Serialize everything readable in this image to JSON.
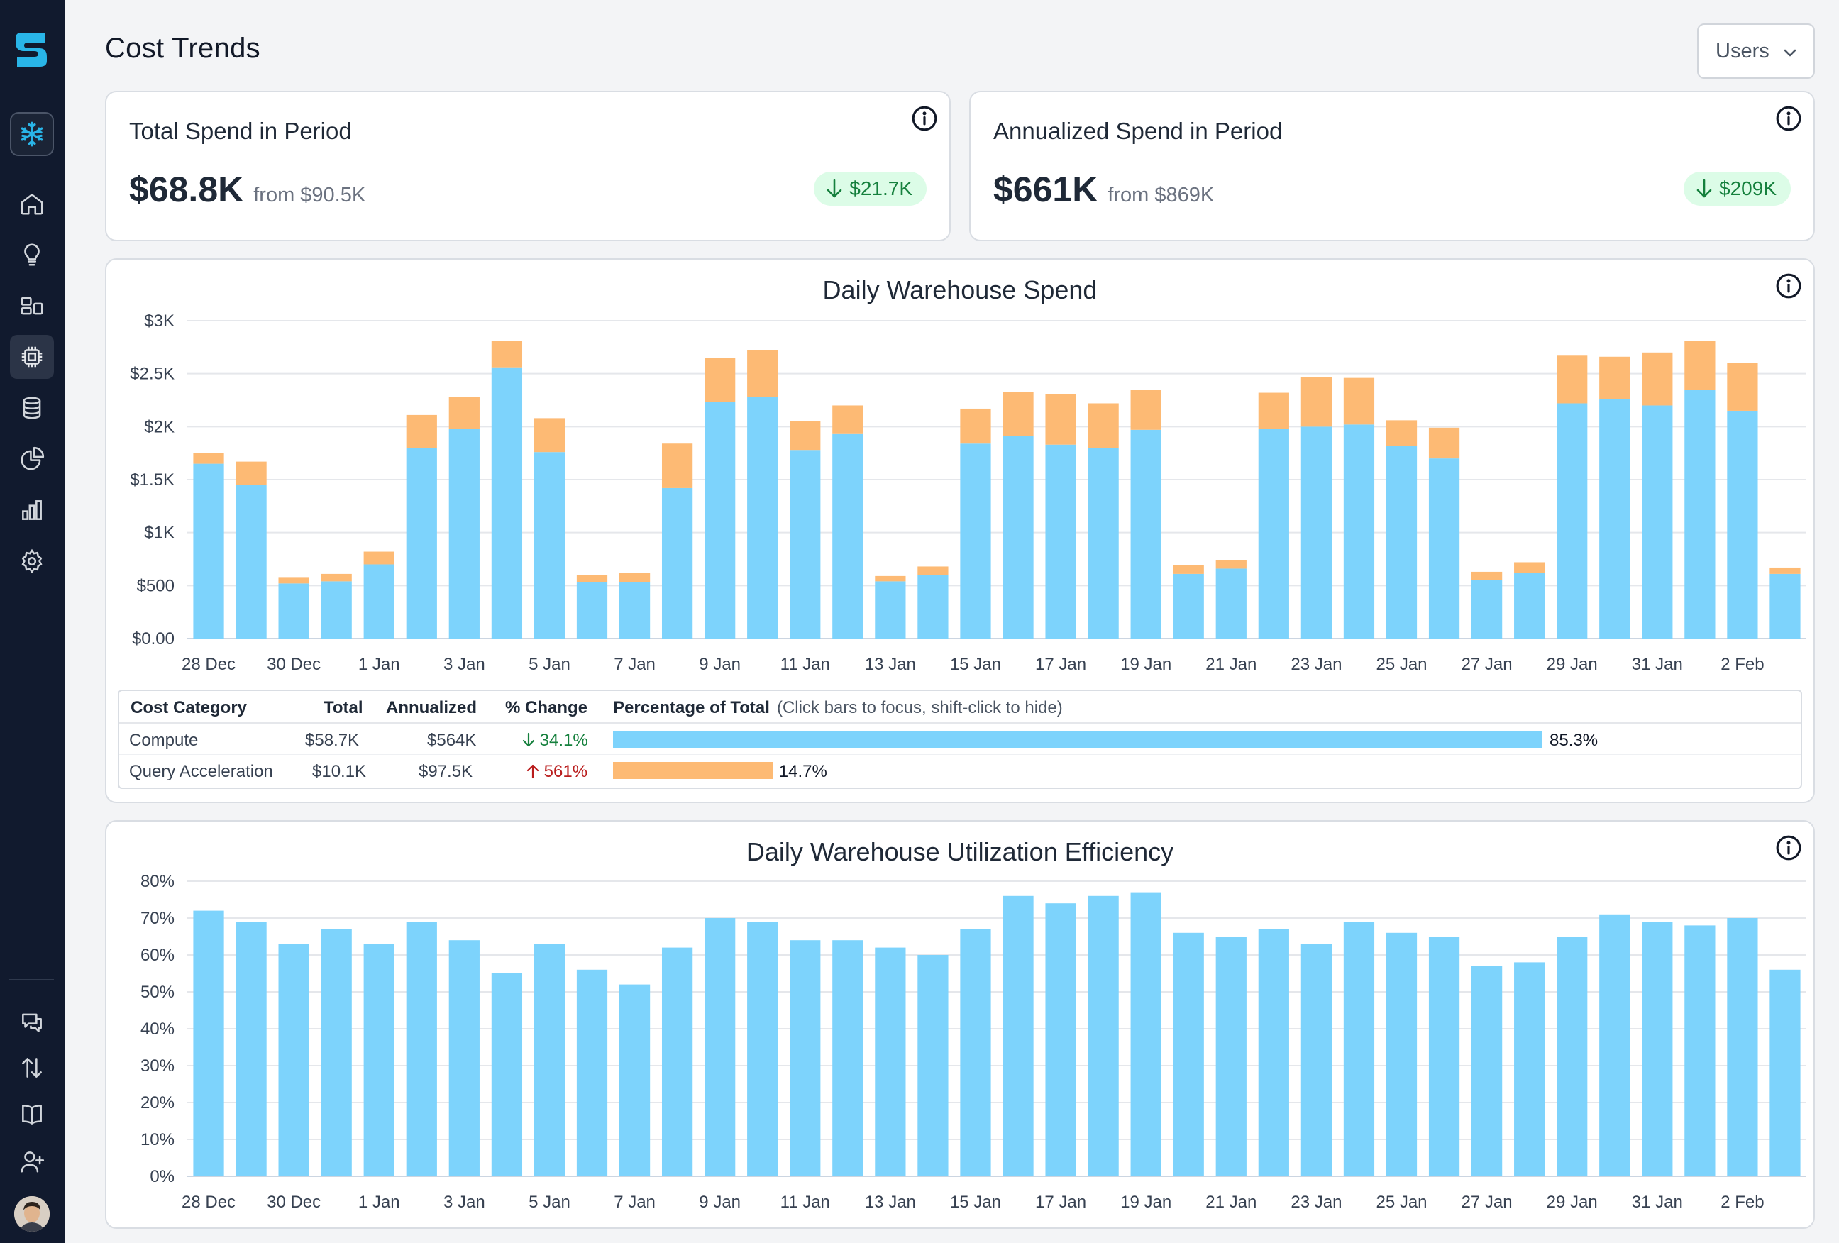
{
  "header": {
    "title": "Cost Trends",
    "users_select": "Users"
  },
  "sidebar": {
    "items": [
      "home-icon",
      "lightbulb-icon",
      "layout-icon",
      "cpu-icon",
      "database-icon",
      "pie-chart-icon",
      "bar-chart-icon",
      "settings-icon"
    ],
    "bottom_items": [
      "chat-icon",
      "transfer-icon",
      "book-icon",
      "add-user-icon"
    ],
    "accent": "#29b5e8"
  },
  "kpis": {
    "total": {
      "title": "Total Spend in Period",
      "value": "$68.8K",
      "from": "from $90.5K",
      "delta": "$21.7K"
    },
    "annualized": {
      "title": "Annualized Spend in Period",
      "value": "$661K",
      "from": "from $869K",
      "delta": "$209K"
    }
  },
  "spend_legend": {
    "headers": {
      "category": "Cost Category",
      "total": "Total",
      "annualized": "Annualized",
      "change": "% Change",
      "pct": "Percentage of Total",
      "hint": "(Click bars to focus, shift-click to hide)"
    },
    "rows": [
      {
        "category": "Compute",
        "total": "$58.7K",
        "annualized": "$564K",
        "change": "34.1%",
        "pct_label": "85.3%",
        "pct": 85.3,
        "color": "#7dd3fc"
      },
      {
        "category": "Query Acceleration",
        "total": "$10.1K",
        "annualized": "$97.5K",
        "change": "561%",
        "pct_label": "14.7%",
        "pct": 14.7,
        "color": "#fdba74"
      }
    ]
  },
  "chart_data": [
    {
      "type": "bar",
      "stacked": true,
      "title": "Daily Warehouse Spend",
      "categories": [
        "28 Dec",
        "29 Dec",
        "30 Dec",
        "31 Dec",
        "1 Jan",
        "2 Jan",
        "3 Jan",
        "4 Jan",
        "5 Jan",
        "6 Jan",
        "7 Jan",
        "8 Jan",
        "9 Jan",
        "10 Jan",
        "11 Jan",
        "12 Jan",
        "13 Jan",
        "14 Jan",
        "15 Jan",
        "16 Jan",
        "17 Jan",
        "18 Jan",
        "19 Jan",
        "20 Jan",
        "21 Jan",
        "22 Jan",
        "23 Jan",
        "24 Jan",
        "25 Jan",
        "26 Jan",
        "27 Jan",
        "28 Jan",
        "29 Jan",
        "30 Jan",
        "31 Jan",
        "1 Feb",
        "2 Feb",
        "3 Feb"
      ],
      "tick_labels": [
        "28 Dec",
        "30 Dec",
        "1 Jan",
        "3 Jan",
        "5 Jan",
        "7 Jan",
        "9 Jan",
        "11 Jan",
        "13 Jan",
        "15 Jan",
        "17 Jan",
        "19 Jan",
        "21 Jan",
        "23 Jan",
        "25 Jan",
        "27 Jan",
        "29 Jan",
        "31 Jan",
        "2 Feb"
      ],
      "y_tick_labels": [
        "$0.00",
        "$500",
        "$1K",
        "$1.5K",
        "$2K",
        "$2.5K",
        "$3K"
      ],
      "ylim": [
        0,
        3000
      ],
      "series": [
        {
          "name": "Compute",
          "color": "#7dd3fc",
          "values": [
            1650,
            1450,
            520,
            540,
            700,
            1800,
            1980,
            2560,
            1760,
            530,
            530,
            1420,
            2230,
            2280,
            1780,
            1930,
            540,
            600,
            1840,
            1910,
            1830,
            1800,
            1970,
            610,
            660,
            1980,
            2000,
            2020,
            1820,
            1700,
            550,
            620,
            2220,
            2260,
            2200,
            2350,
            2150,
            610
          ]
        },
        {
          "name": "Query Acceleration",
          "color": "#fdba74",
          "values": [
            100,
            220,
            60,
            70,
            120,
            310,
            300,
            250,
            320,
            70,
            90,
            420,
            420,
            440,
            270,
            270,
            50,
            80,
            330,
            420,
            480,
            420,
            380,
            80,
            80,
            340,
            470,
            440,
            240,
            290,
            80,
            100,
            450,
            400,
            500,
            460,
            450,
            60
          ]
        }
      ]
    },
    {
      "type": "bar",
      "title": "Daily Warehouse Utilization Efficiency",
      "categories": [
        "28 Dec",
        "29 Dec",
        "30 Dec",
        "31 Dec",
        "1 Jan",
        "2 Jan",
        "3 Jan",
        "4 Jan",
        "5 Jan",
        "6 Jan",
        "7 Jan",
        "8 Jan",
        "9 Jan",
        "10 Jan",
        "11 Jan",
        "12 Jan",
        "13 Jan",
        "14 Jan",
        "15 Jan",
        "16 Jan",
        "17 Jan",
        "18 Jan",
        "19 Jan",
        "20 Jan",
        "21 Jan",
        "22 Jan",
        "23 Jan",
        "24 Jan",
        "25 Jan",
        "26 Jan",
        "27 Jan",
        "28 Jan",
        "29 Jan",
        "30 Jan",
        "31 Jan",
        "1 Feb",
        "2 Feb",
        "3 Feb"
      ],
      "tick_labels": [
        "28 Dec",
        "30 Dec",
        "1 Jan",
        "3 Jan",
        "5 Jan",
        "7 Jan",
        "9 Jan",
        "11 Jan",
        "13 Jan",
        "15 Jan",
        "17 Jan",
        "19 Jan",
        "21 Jan",
        "23 Jan",
        "25 Jan",
        "27 Jan",
        "29 Jan",
        "31 Jan",
        "2 Feb"
      ],
      "y_tick_labels": [
        "0%",
        "10%",
        "20%",
        "30%",
        "40%",
        "50%",
        "60%",
        "70%",
        "80%"
      ],
      "ylim": [
        0,
        80
      ],
      "series": [
        {
          "name": "Utilization",
          "color": "#7dd3fc",
          "values": [
            72,
            69,
            63,
            67,
            63,
            69,
            64,
            55,
            63,
            56,
            52,
            62,
            70,
            69,
            64,
            64,
            62,
            60,
            67,
            76,
            74,
            76,
            77,
            66,
            65,
            67,
            63,
            69,
            66,
            65,
            57,
            58,
            65,
            71,
            69,
            68,
            70,
            56
          ]
        }
      ]
    }
  ]
}
